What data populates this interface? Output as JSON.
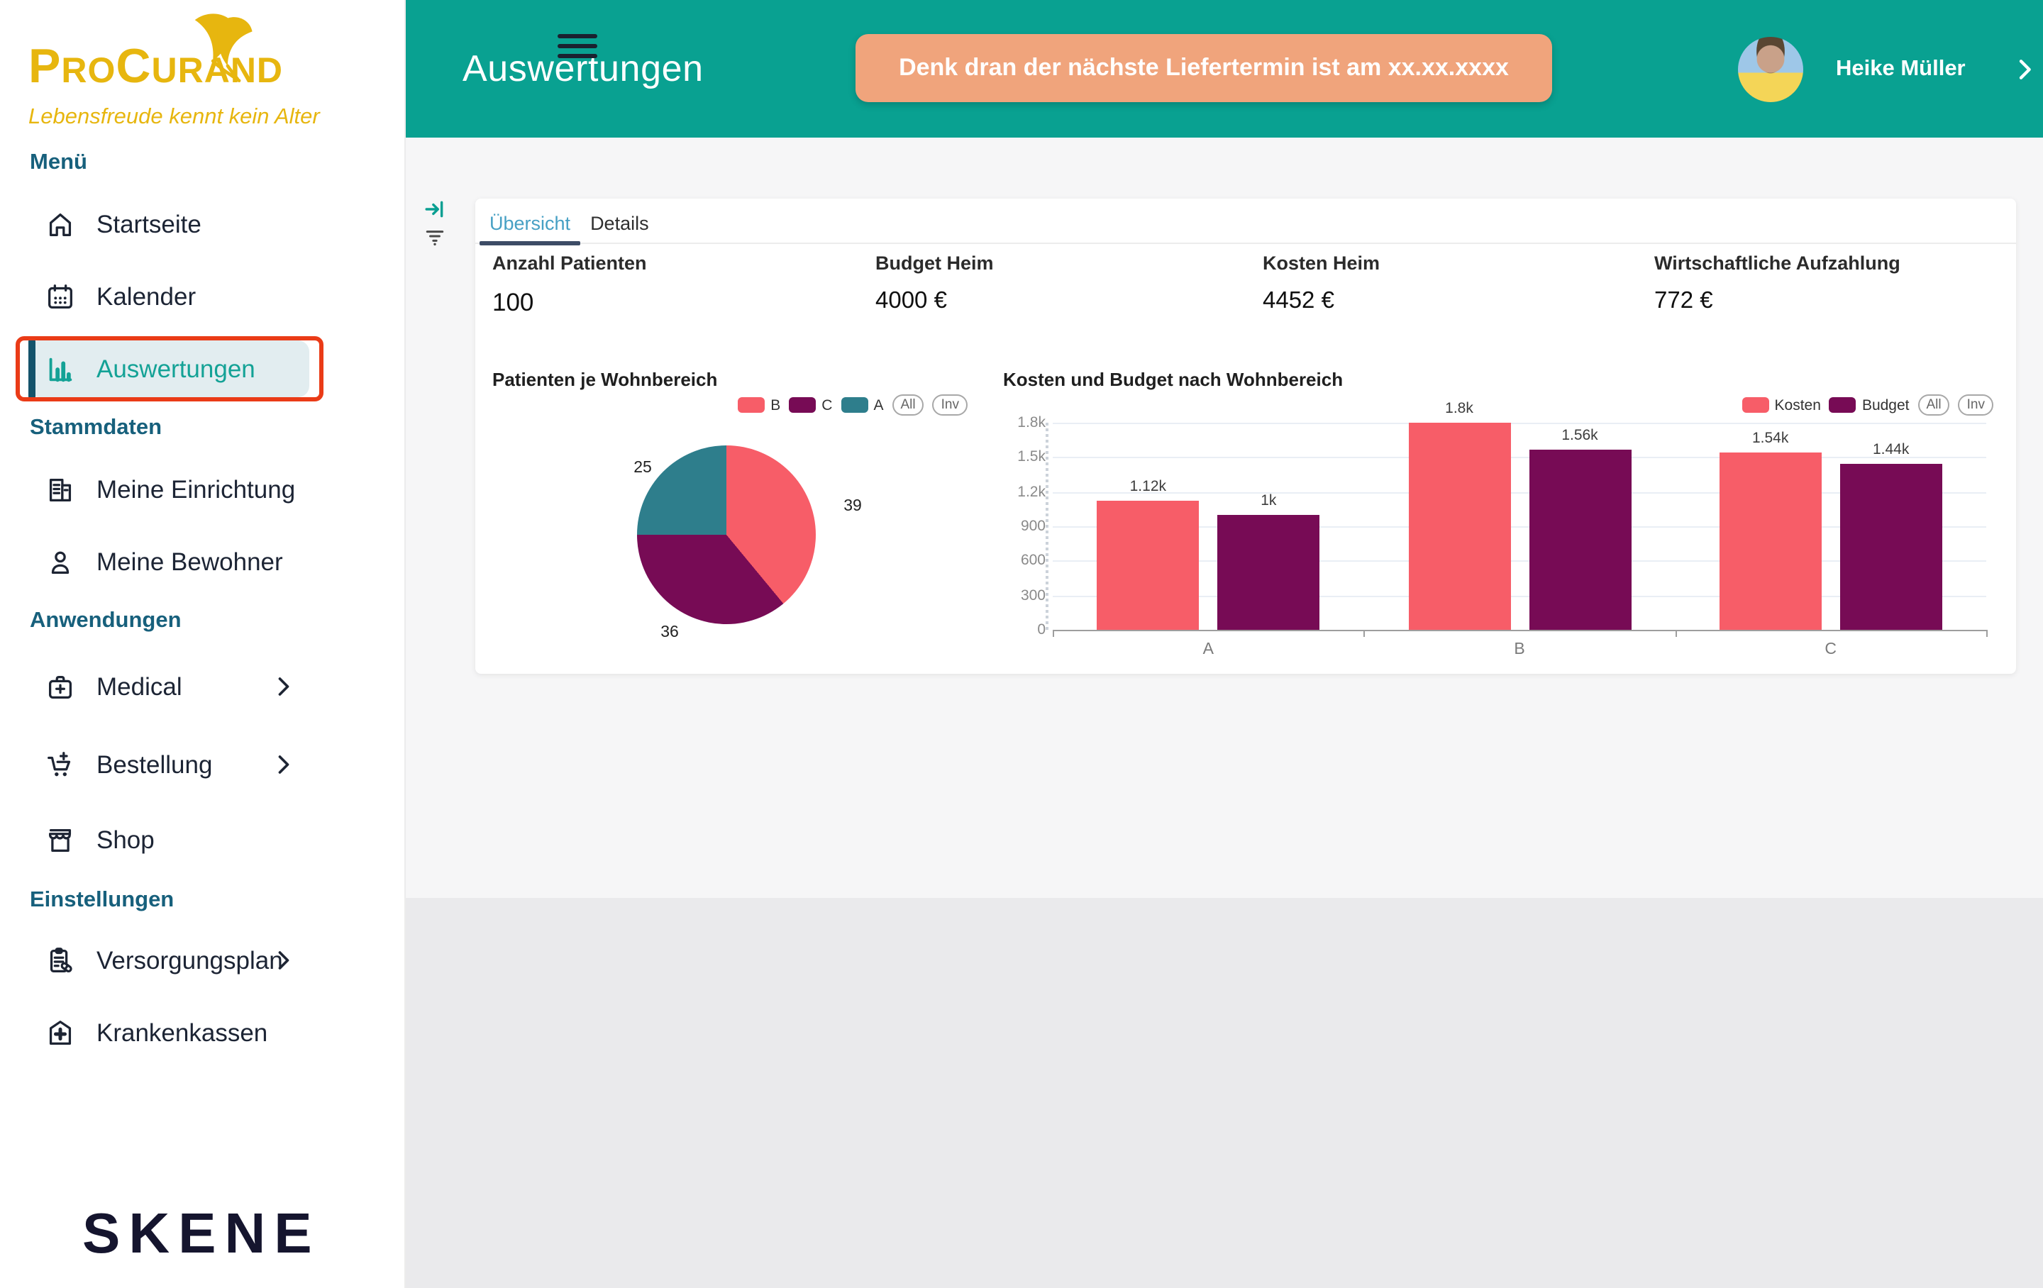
{
  "sidebar": {
    "brand": "ProCurand",
    "tagline": "Lebensfreude kennt kein Alter",
    "footer_brand": "SKENE",
    "sections": [
      {
        "heading": "Menü",
        "items": [
          {
            "label": "Startseite",
            "icon": "home-icon"
          },
          {
            "label": "Kalender",
            "icon": "calendar-icon"
          },
          {
            "label": "Auswertungen",
            "icon": "bar-chart-icon",
            "active": true,
            "annotated": true
          }
        ]
      },
      {
        "heading": "Stammdaten",
        "items": [
          {
            "label": "Meine Einrichtung",
            "icon": "building-icon"
          },
          {
            "label": "Meine Bewohner",
            "icon": "person-icon"
          }
        ]
      },
      {
        "heading": "Anwendungen",
        "items": [
          {
            "label": "Medical",
            "icon": "medical-bag-icon",
            "chevron": true
          },
          {
            "label": "Bestellung",
            "icon": "cart-plus-icon",
            "chevron": true
          },
          {
            "label": "Shop",
            "icon": "storefront-icon"
          }
        ]
      },
      {
        "heading": "Einstellungen",
        "items": [
          {
            "label": "Versorgungsplan",
            "icon": "clipboard-pill-icon",
            "chevron": true
          },
          {
            "label": "Krankenkassen",
            "icon": "hospital-icon"
          }
        ]
      }
    ]
  },
  "header": {
    "title": "Auswertungen",
    "banner": "Denk dran der nächste Liefertermin ist am xx.xx.xxxx",
    "user": "Heike Müller"
  },
  "tabs": [
    {
      "label": "Übersicht",
      "active": true
    },
    {
      "label": "Details",
      "active": false
    }
  ],
  "stats": [
    {
      "label": "Anzahl Patienten",
      "value": "100"
    },
    {
      "label": "Budget Heim",
      "value": "4000 €"
    },
    {
      "label": "Kosten Heim",
      "value": "4452 €"
    },
    {
      "label": "Wirtschaftliche Aufzahlung",
      "value": "772 €"
    }
  ],
  "colors": {
    "header_teal": "#09a191",
    "banner_orange": "#f0a47c",
    "annotation_red": "#ea3b17",
    "active_menu_teal": "#14a296",
    "series_salmon": "#f75d68",
    "series_purple": "#770b55",
    "series_teal": "#2e7e8c"
  },
  "chart_data": [
    {
      "type": "pie",
      "title": "Patienten je Wohnbereich",
      "series": [
        {
          "label": "B",
          "value": 39,
          "color": "#f75d68"
        },
        {
          "label": "C",
          "value": 36,
          "color": "#770b55"
        },
        {
          "label": "A",
          "value": 25,
          "color": "#2e7e8c"
        }
      ],
      "data_labels": [
        "39",
        "36",
        "25"
      ],
      "legend": [
        "B",
        "C",
        "A"
      ],
      "legend_buttons": [
        "All",
        "Inv"
      ],
      "start_angle": "top",
      "direction": "clockwise",
      "legend_position": "top-right"
    },
    {
      "type": "bar",
      "title": "Kosten und Budget nach Wohnbereich",
      "categories": [
        "A",
        "B",
        "C"
      ],
      "series": [
        {
          "name": "Kosten",
          "color": "#f75d68",
          "values": [
            1120,
            1800,
            1540
          ],
          "value_labels": [
            "1.12k",
            "1.8k",
            "1.54k"
          ]
        },
        {
          "name": "Budget",
          "color": "#770b55",
          "values": [
            1000,
            1560,
            1440
          ],
          "value_labels": [
            "1k",
            "1.56k",
            "1.44k"
          ]
        }
      ],
      "ylim": [
        0,
        1800
      ],
      "y_tick_values": [
        0,
        300,
        600,
        900,
        1200,
        1500,
        1800
      ],
      "y_tick_labels": [
        "0",
        "300",
        "600",
        "900",
        "1.2k",
        "1.5k",
        "1.8k"
      ],
      "grid": true,
      "legend_buttons": [
        "All",
        "Inv"
      ],
      "legend_position": "top-right"
    }
  ]
}
